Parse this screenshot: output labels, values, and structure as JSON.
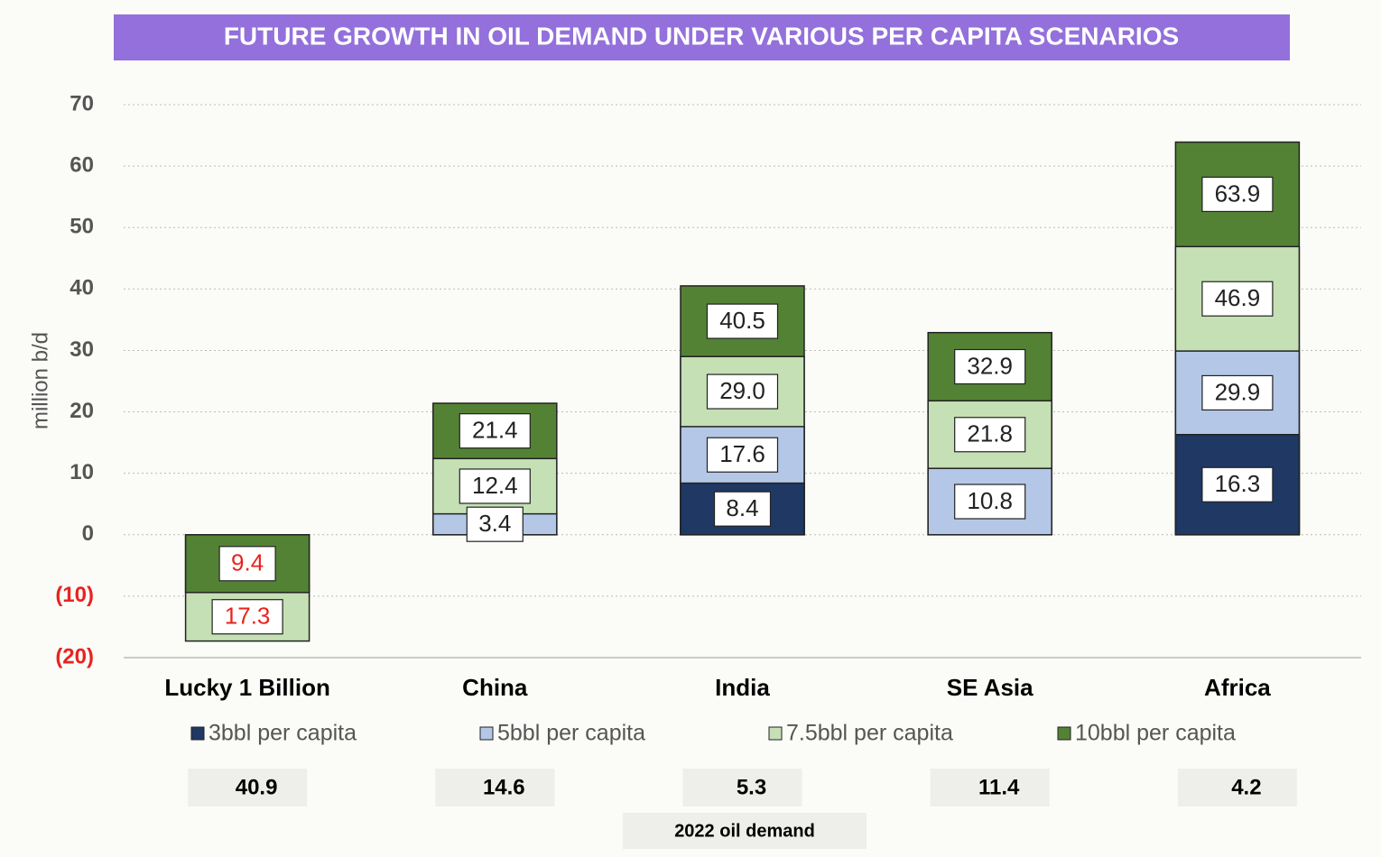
{
  "chart_data": {
    "type": "bar",
    "title": "FUTURE GROWTH IN OIL DEMAND UNDER VARIOUS PER CAPITA SCENARIOS",
    "y_label": "million b/d",
    "categories": [
      "Lucky 1 Billion",
      "China",
      "India",
      "SE Asia",
      "Africa"
    ],
    "series": [
      {
        "name": "3bbl per capita",
        "color": "#1f3864",
        "values": [
          null,
          null,
          8.4,
          null,
          16.3
        ],
        "value_labels": [
          null,
          null,
          "8.4",
          null,
          "16.3"
        ]
      },
      {
        "name": "5bbl per capita",
        "color": "#b4c7e7",
        "values": [
          null,
          3.4,
          17.6,
          10.8,
          29.9
        ],
        "value_labels": [
          null,
          "3.4",
          "17.6",
          "10.8",
          "29.9"
        ]
      },
      {
        "name": "7.5bbl per capita",
        "color": "#c5e0b4",
        "values": [
          -17.3,
          12.4,
          29.0,
          21.8,
          46.9
        ],
        "value_labels": [
          "17.3",
          "12.4",
          "29.0",
          "21.8",
          "46.9"
        ]
      },
      {
        "name": "10bbl per capita",
        "color": "#548235",
        "values": [
          -9.4,
          21.4,
          40.5,
          32.9,
          63.9
        ],
        "value_labels": [
          "9.4",
          "21.4",
          "40.5",
          "32.9",
          "63.9"
        ]
      }
    ],
    "ylim": [
      -20,
      70
    ],
    "yticks": [
      {
        "value": -20,
        "label": "(20)"
      },
      {
        "value": -10,
        "label": "(10)"
      },
      0,
      10,
      20,
      30,
      40,
      50,
      60,
      70
    ],
    "grid": true,
    "negative_color": "#e8231f",
    "layout": "overlapping",
    "demand_2022": {
      "label": "2022 oil demand",
      "values": [
        40.9,
        14.6,
        5.3,
        11.4,
        4.2
      ]
    }
  }
}
